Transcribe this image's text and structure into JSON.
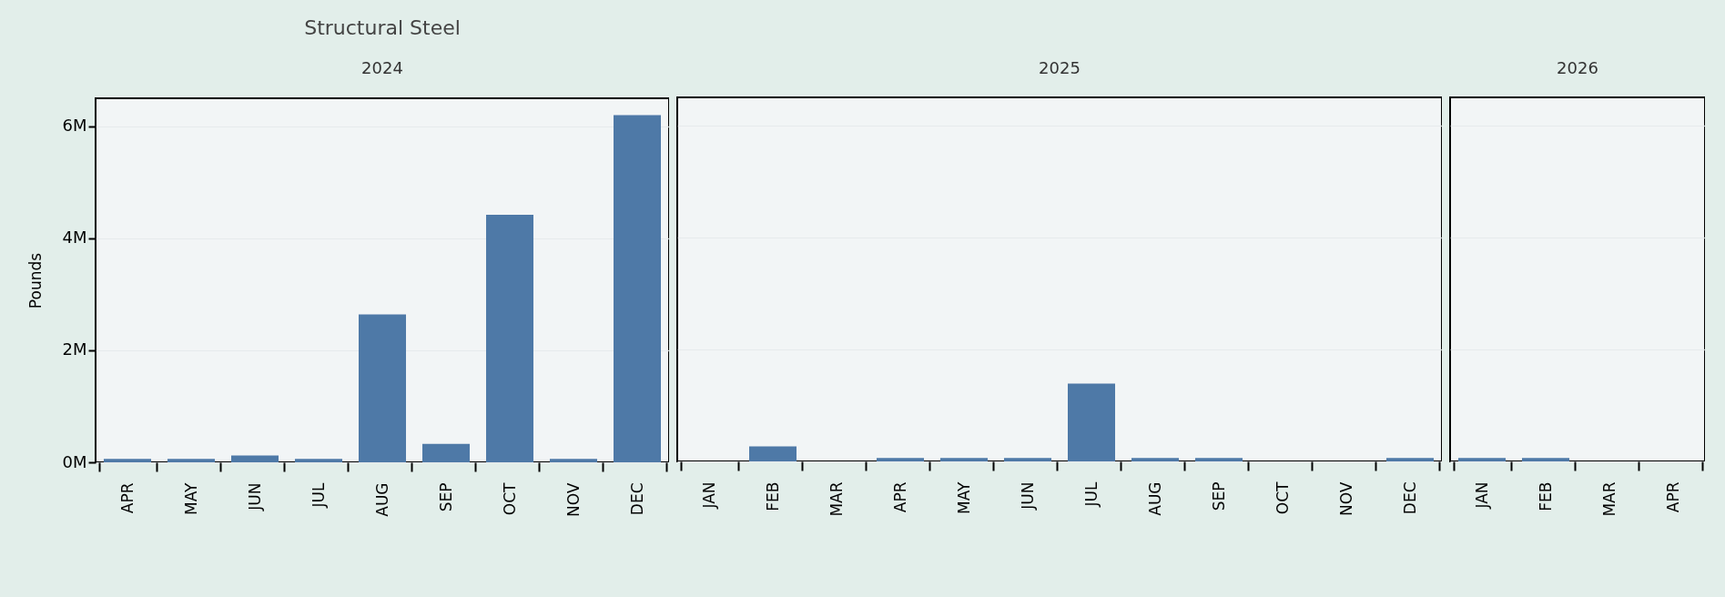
{
  "chart_data": [
    {
      "type": "bar",
      "title": "Structural Steel",
      "subtitle": "2024",
      "ylabel": "Pounds",
      "categories": [
        "APR",
        "MAY",
        "JUN",
        "JUL",
        "AUG",
        "SEP",
        "OCT",
        "NOV",
        "DEC"
      ],
      "values": [
        0.06,
        0.06,
        0.12,
        0.06,
        2.64,
        0.33,
        4.42,
        0.06,
        6.2
      ],
      "color": "#4e79a7",
      "ylim": [
        0,
        6.5
      ],
      "yticks": [
        {
          "value": 0,
          "label": "0M"
        },
        {
          "value": 2,
          "label": "2M"
        },
        {
          "value": 4,
          "label": "4M"
        },
        {
          "value": 6,
          "label": "6M"
        }
      ],
      "grid": "y"
    },
    {
      "type": "bar",
      "subtitle": "2025",
      "categories": [
        "JAN",
        "FEB",
        "MAR",
        "APR",
        "MAY",
        "JUN",
        "JUL",
        "AUG",
        "SEP",
        "OCT",
        "NOV",
        "DEC"
      ],
      "values": [
        null,
        0.27,
        null,
        0.06,
        0.06,
        0.06,
        1.39,
        0.06,
        0.06,
        null,
        null,
        0.06
      ],
      "color": "#4e79a7",
      "ylim": [
        0,
        6.5
      ],
      "yticks": [
        {
          "value": 0,
          "label": null
        },
        {
          "value": 2,
          "label": null
        },
        {
          "value": 4,
          "label": null
        },
        {
          "value": 6,
          "label": null
        }
      ],
      "grid": "y",
      "tick_labels": "x"
    },
    {
      "type": "bar",
      "subtitle": "2026",
      "categories": [
        "JAN",
        "FEB",
        "MAR",
        "APR"
      ],
      "values": [
        0.06,
        0.06,
        null,
        null
      ],
      "color": "#4e79a7",
      "ylim": [
        0,
        6.5
      ],
      "yticks": [
        {
          "value": 0,
          "label": null
        },
        {
          "value": 2,
          "label": null
        },
        {
          "value": 4,
          "label": null
        },
        {
          "value": 6,
          "label": null
        }
      ],
      "grid": "y",
      "tick_labels": "x"
    }
  ]
}
